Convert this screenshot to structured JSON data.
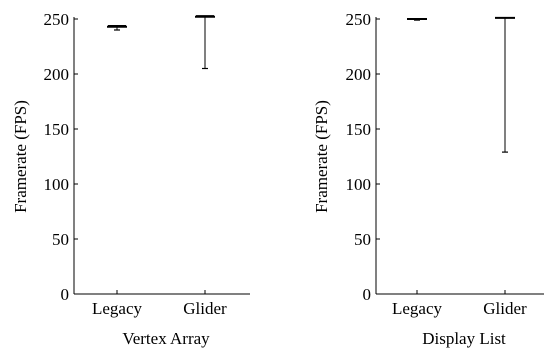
{
  "chart_data": [
    {
      "type": "box",
      "title": "",
      "xlabel": "Vertex Array",
      "ylabel": "Framerate (FPS)",
      "ylim": [
        0,
        250
      ],
      "yticks": [
        0,
        50,
        100,
        150,
        200,
        250
      ],
      "grid": false,
      "categories": [
        "Legacy",
        "Glider"
      ],
      "series": [
        {
          "category": "Legacy",
          "min": 240,
          "q1": 242,
          "median": 243,
          "q3": 243,
          "max": 244
        },
        {
          "category": "Glider",
          "min": 205,
          "q1": 251,
          "median": 252,
          "q3": 252,
          "max": 253
        }
      ]
    },
    {
      "type": "box",
      "title": "",
      "xlabel": "Display List",
      "ylabel": "Framerate (FPS)",
      "ylim": [
        0,
        250
      ],
      "yticks": [
        0,
        50,
        100,
        150,
        200,
        250
      ],
      "grid": false,
      "categories": [
        "Legacy",
        "Glider"
      ],
      "series": [
        {
          "category": "Legacy",
          "min": 249,
          "q1": 249,
          "median": 250,
          "q3": 250,
          "max": 250
        },
        {
          "category": "Glider",
          "min": 129,
          "q1": 251,
          "median": 251,
          "q3": 251,
          "max": 251
        }
      ]
    }
  ]
}
